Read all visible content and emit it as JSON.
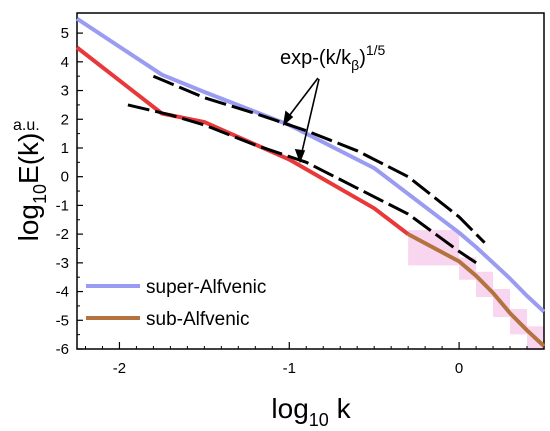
{
  "chart_data": {
    "type": "line",
    "xlim": [
      -2.25,
      0.5
    ],
    "ylim": [
      -6,
      5.7
    ],
    "x_ticks": [
      -2,
      -1,
      0
    ],
    "y_ticks": [
      5,
      4,
      3,
      2,
      1,
      0,
      -1,
      -2,
      -3,
      -4,
      -5,
      -6
    ],
    "xlabel": {
      "main": "log",
      "sub": "10",
      "tail": " k"
    },
    "ylabel": {
      "main": "log",
      "sub": "10",
      "tail": "E(k)"
    },
    "unit_label": "a.u.",
    "annotation": {
      "prefix": "exp-(k/k",
      "sub": "β",
      "close": ")",
      "sup": "1/5"
    },
    "legend": {
      "placement": "lower-left"
    },
    "series": [
      {
        "name": "super-Alfvenic",
        "color": "#9a9cf2",
        "x": [
          -2.25,
          -1.75,
          -1.5,
          -1.0,
          -0.5,
          0.0,
          0.1,
          0.2,
          0.3,
          0.4,
          0.5
        ],
        "y": [
          5.5,
          3.55,
          2.95,
          1.8,
          0.3,
          -1.95,
          -2.45,
          -3.0,
          -3.55,
          -4.15,
          -4.7
        ]
      },
      {
        "name": "sub-Alfvenic",
        "color": "#e8383a",
        "tail_color": "#b4723e",
        "tail_start": -0.3,
        "x": [
          -2.25,
          -1.75,
          -1.5,
          -1.0,
          -0.5,
          -0.3,
          0.0,
          0.1,
          0.2,
          0.3,
          0.4,
          0.5
        ],
        "y": [
          4.5,
          2.2,
          1.9,
          0.6,
          -1.1,
          -2.0,
          -2.95,
          -3.45,
          -4.05,
          -4.75,
          -5.35,
          -5.9
        ]
      }
    ],
    "fits": [
      {
        "label": "exp-(k/kβ)^1/5 fit (super)",
        "x": [
          -1.8,
          -1.5,
          -1.2,
          -0.9,
          -0.6,
          -0.3,
          0.0,
          0.15
        ],
        "y": [
          3.5,
          2.75,
          2.2,
          1.6,
          0.9,
          0.0,
          -1.4,
          -2.3
        ]
      },
      {
        "label": "exp-(k/kβ)^1/5 fit (sub)",
        "x": [
          -1.95,
          -1.7,
          -1.5,
          -1.2,
          -0.9,
          -0.6,
          -0.3,
          0.0,
          0.1
        ],
        "y": [
          2.5,
          2.15,
          1.8,
          1.1,
          0.5,
          -0.4,
          -1.3,
          -2.6,
          -3.0
        ]
      }
    ]
  }
}
